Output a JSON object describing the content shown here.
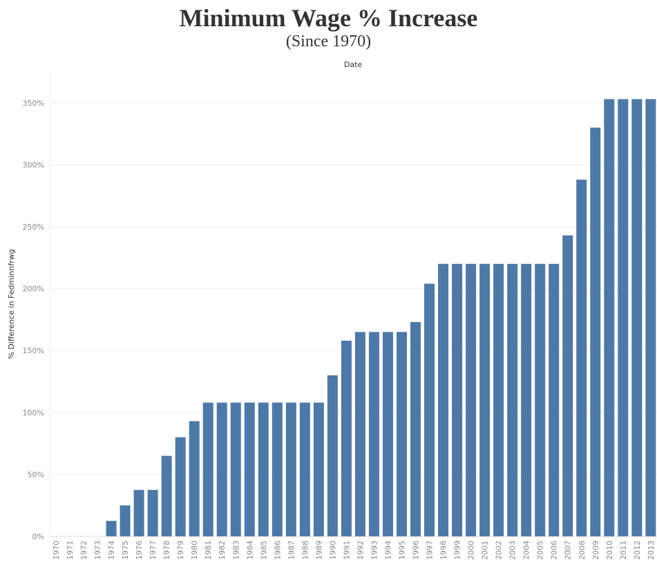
{
  "title": "Minimum Wage % Increase",
  "subtitle": "(Since 1970)",
  "chart_data": {
    "type": "bar",
    "title": "Minimum Wage % Increase",
    "subtitle": "(Since 1970)",
    "top_axis_label": "Date",
    "ylabel": "% Difference in Fedminnfrwg",
    "xlabel": "",
    "ylim": [
      0,
      375
    ],
    "yticks": [
      0,
      50,
      100,
      150,
      200,
      250,
      300,
      350
    ],
    "ytick_suffix": "%",
    "grid": "horizontal",
    "bar_color": "#4e79a7",
    "categories": [
      "1970",
      "1971",
      "1972",
      "1973",
      "1974",
      "1975",
      "1976",
      "1977",
      "1978",
      "1979",
      "1980",
      "1981",
      "1982",
      "1983",
      "1984",
      "1985",
      "1986",
      "1987",
      "1988",
      "1989",
      "1990",
      "1991",
      "1992",
      "1993",
      "1994",
      "1995",
      "1996",
      "1997",
      "1998",
      "1999",
      "2000",
      "2001",
      "2002",
      "2003",
      "2004",
      "2005",
      "2006",
      "2007",
      "2008",
      "2009",
      "2010",
      "2011",
      "2012",
      "2013"
    ],
    "values": [
      0,
      0,
      0,
      0,
      12.5,
      25,
      37.5,
      37.5,
      65,
      80,
      93,
      108,
      108,
      108,
      108,
      108,
      108,
      108,
      108,
      108,
      130,
      158,
      165,
      165,
      165,
      165,
      173,
      204,
      220,
      220,
      220,
      220,
      220,
      220,
      220,
      220,
      220,
      243,
      288,
      330,
      353,
      353,
      353,
      353
    ]
  }
}
